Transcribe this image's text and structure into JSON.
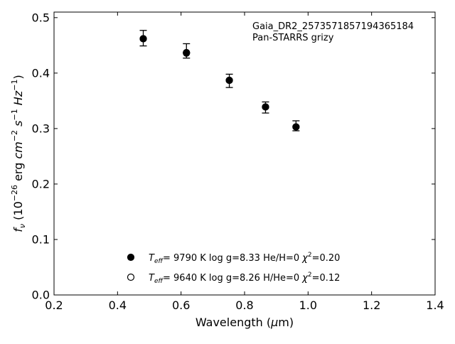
{
  "chart_data": {
    "type": "scatter",
    "xlabel": "Wavelength (μm)",
    "ylabel": "f_ν (10^-26 erg cm^-2 s^-1 Hz^-1)",
    "xlim": [
      0.2,
      1.4
    ],
    "ylim": [
      0.0,
      0.51
    ],
    "xticks": [
      0.2,
      0.4,
      0.6,
      0.8,
      1.0,
      1.2,
      1.4
    ],
    "xtick_labels": [
      "0.2",
      "0.4",
      "0.6",
      "0.8",
      "1.0",
      "1.2",
      "1.4"
    ],
    "yticks": [
      0.0,
      0.1,
      0.2,
      0.3,
      0.4,
      0.5
    ],
    "ytick_labels": [
      "0.0",
      "0.1",
      "0.2",
      "0.3",
      "0.4",
      "0.5"
    ],
    "grid": false,
    "annotation": [
      "Gaia_DR2_2573571857194365184",
      "Pan-STARRS grizy"
    ],
    "observed": {
      "x": [
        0.481,
        0.617,
        0.752,
        0.866,
        0.962
      ],
      "y": [
        0.463,
        0.44,
        0.386,
        0.338,
        0.305
      ],
      "yerr": [
        0.014,
        0.013,
        0.012,
        0.01,
        0.009
      ]
    },
    "series": [
      {
        "marker": "filled",
        "x": [
          0.481,
          0.617,
          0.752,
          0.866,
          0.962
        ],
        "y": [
          0.462,
          0.436,
          0.387,
          0.339,
          0.303
        ]
      },
      {
        "marker": "open",
        "x": [
          0.481,
          0.617,
          0.752,
          0.866,
          0.962
        ],
        "y": [
          0.462,
          0.437,
          0.387,
          0.339,
          0.303
        ]
      }
    ],
    "legend": {
      "position": "bottom-center",
      "entries": [
        {
          "marker": "filled",
          "teff_label": "T",
          "teff_sub": "eff",
          "rest": "=  9790 K  log g=8.33  He/H=0",
          "chi_label": "χ",
          "chi_sup": "2",
          "chi_value": "=0.20"
        },
        {
          "marker": "open",
          "teff_label": "T",
          "teff_sub": "eff",
          "rest": "=  9640 K  log g=8.26  H/He=0",
          "chi_label": "χ",
          "chi_sup": "2",
          "chi_value": "=0.12"
        }
      ]
    }
  }
}
